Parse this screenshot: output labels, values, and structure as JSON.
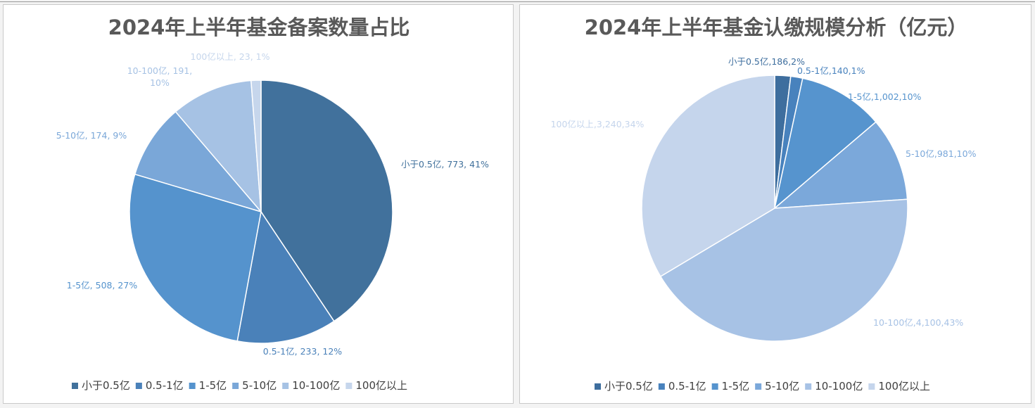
{
  "chart_data": [
    {
      "type": "pie",
      "title": "2024年上半年基金备案数量占比",
      "slices": [
        {
          "name": "小于0.5亿",
          "value": 773,
          "percent": "41%",
          "label": "小于0.5亿, 773, 41%",
          "color": "#41719c"
        },
        {
          "name": "0.5-1亿",
          "value": 233,
          "percent": "12%",
          "label": "0.5-1亿, 233, 12%",
          "color": "#4a81b9"
        },
        {
          "name": "1-5亿",
          "value": 508,
          "percent": "27%",
          "label": "1-5亿, 508, 27%",
          "color": "#5593cd"
        },
        {
          "name": "5-10亿",
          "value": 174,
          "percent": "9%",
          "label": "5-10亿, 174, 9%",
          "color": "#7aa7d8"
        },
        {
          "name": "10-100亿",
          "value": 191,
          "percent": "10%",
          "label": "10-100亿, 191, 10%",
          "color": "#a6c2e4"
        },
        {
          "name": "100亿以上",
          "value": 23,
          "percent": "1%",
          "label": "100亿以上, 23, 1%",
          "color": "#c6d6ec"
        }
      ],
      "legend_position": "bottom"
    },
    {
      "type": "pie",
      "title": "2024年上半年基金认缴规模分析（亿元）",
      "slices": [
        {
          "name": "小于0.5亿",
          "value": 186,
          "percent": "2%",
          "label": "小于0.5亿,186,2%",
          "color": "#3e6e9e"
        },
        {
          "name": "0.5-1亿",
          "value": 140,
          "percent": "1%",
          "label": "0.5-1亿,140,1%",
          "color": "#4882bd"
        },
        {
          "name": "1-5亿",
          "value": 1002,
          "percent": "10%",
          "label": "1-5亿,1,002,10%",
          "color": "#5694ce"
        },
        {
          "name": "5-10亿",
          "value": 981,
          "percent": "10%",
          "label": "5-10亿,981,10%",
          "color": "#7ba8da"
        },
        {
          "name": "10-100亿",
          "value": 4100,
          "percent": "43%",
          "label": "10-100亿,4,100,43%",
          "color": "#a7c2e5"
        },
        {
          "name": "100亿以上",
          "value": 3240,
          "percent": "34%",
          "label": "100亿以上,3,240,34%",
          "color": "#c5d5ec"
        }
      ],
      "legend_position": "bottom"
    }
  ]
}
